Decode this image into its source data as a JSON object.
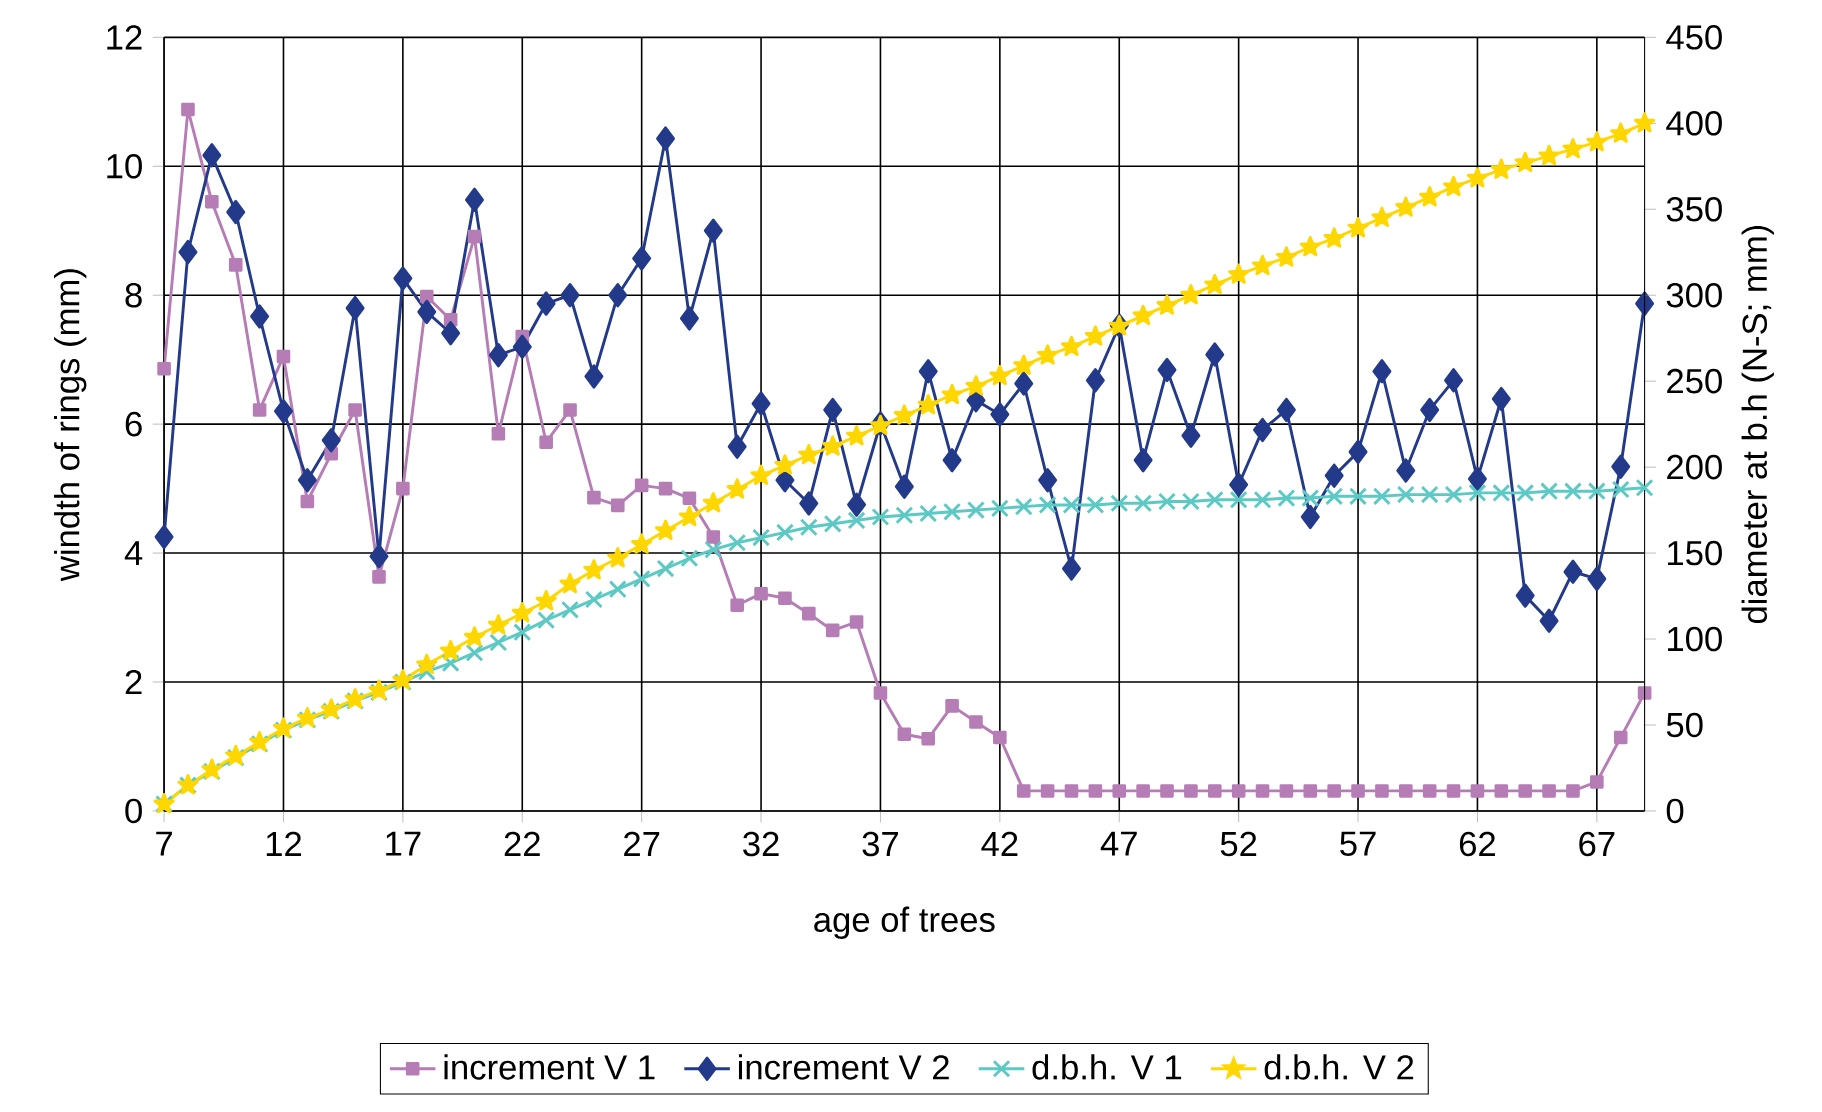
{
  "chart_data": {
    "type": "line",
    "xlabel": "age of trees",
    "ylabel": "windth of rings (mm)",
    "y2label": "diameter at b.h (N-S; mm)",
    "x": [
      7,
      8,
      9,
      10,
      11,
      12,
      13,
      14,
      15,
      16,
      17,
      18,
      19,
      20,
      21,
      22,
      23,
      24,
      25,
      26,
      27,
      28,
      29,
      30,
      31,
      32,
      33,
      34,
      35,
      36,
      37,
      38,
      39,
      40,
      41,
      42,
      43,
      44,
      45,
      46,
      47,
      48,
      49,
      50,
      51,
      52,
      53,
      54,
      55,
      56,
      57,
      58,
      59,
      60,
      61,
      62,
      63,
      64,
      65,
      66,
      67,
      68,
      69
    ],
    "xlim": [
      7,
      69
    ],
    "xticks": [
      7,
      12,
      17,
      22,
      27,
      32,
      37,
      42,
      47,
      52,
      57,
      62,
      67
    ],
    "ylim": [
      0,
      12
    ],
    "yticks": [
      0,
      2,
      4,
      6,
      8,
      10,
      12
    ],
    "y2lim": [
      0,
      450
    ],
    "y2ticks": [
      0,
      50,
      100,
      150,
      200,
      250,
      300,
      350,
      400,
      450
    ],
    "grid": true,
    "legend": "bottom",
    "line_style": "solid",
    "series": [
      {
        "name": "increment V 1",
        "color": "#b57cb5",
        "marker": "square",
        "values": [
          6.86,
          10.88,
          9.45,
          8.47,
          6.22,
          7.05,
          4.8,
          5.54,
          6.22,
          3.63,
          5.0,
          7.98,
          7.62,
          8.91,
          5.85,
          7.36,
          5.72,
          6.22,
          4.86,
          4.74,
          5.05,
          5.0,
          4.85,
          4.25,
          3.19,
          3.37,
          3.3,
          3.06,
          2.8,
          2.93,
          1.83,
          1.19,
          1.12,
          1.63,
          1.38,
          1.14,
          0.31,
          0.31,
          0.31,
          0.31,
          0.31,
          0.31,
          0.31,
          0.31,
          0.31,
          0.31,
          0.31,
          0.31,
          0.31,
          0.31,
          0.31,
          0.31,
          0.31,
          0.31,
          0.31,
          0.31,
          0.31,
          0.31,
          0.31,
          0.31,
          0.45,
          1.14,
          1.83
        ]
      },
      {
        "name": "increment V 2",
        "color": "#233a8a",
        "marker": "diamond",
        "values": [
          4.25,
          8.67,
          10.17,
          9.29,
          7.67,
          6.2,
          5.13,
          5.75,
          7.8,
          3.95,
          8.26,
          7.74,
          7.41,
          9.48,
          7.07,
          7.2,
          7.87,
          8.0,
          6.74,
          8.0,
          8.57,
          10.43,
          7.64,
          9.0,
          5.65,
          6.32,
          5.13,
          4.77,
          6.22,
          4.75,
          6.01,
          5.03,
          6.82,
          5.44,
          6.37,
          6.15,
          6.63,
          5.13,
          3.76,
          6.68,
          7.53,
          5.44,
          6.84,
          5.82,
          7.08,
          5.06,
          5.91,
          6.22,
          4.56,
          5.2,
          5.57,
          6.82,
          5.28,
          6.22,
          6.68,
          5.15,
          6.39,
          3.34,
          2.95,
          3.71,
          3.6,
          5.34,
          7.87
        ]
      },
      {
        "name": "d.b.h. V 1",
        "color": "#5cc9c4",
        "marker": "cross",
        "axis": "y2",
        "values": [
          4,
          15,
          23,
          31,
          39,
          47,
          53,
          58,
          64,
          69,
          75,
          81,
          86,
          92,
          98,
          104,
          111,
          117,
          123,
          129,
          135,
          141,
          147,
          152,
          156,
          159,
          162,
          165,
          167,
          169,
          171,
          172,
          173,
          174,
          175,
          176,
          177,
          178,
          178,
          178,
          179,
          179,
          180,
          180,
          181,
          181,
          181,
          182,
          182,
          183,
          183,
          183,
          184,
          184,
          184,
          185,
          185,
          185,
          186,
          186,
          186,
          187,
          188
        ]
      },
      {
        "name": "d.b.h. V 2",
        "color": "#ffd700",
        "marker": "star",
        "axis": "y2",
        "values": [
          4,
          15,
          24,
          32,
          40,
          48,
          54,
          59,
          65,
          70,
          76,
          85,
          93,
          101,
          108,
          115,
          122,
          132,
          140,
          147,
          155,
          163,
          171,
          179,
          187,
          195,
          201,
          207,
          212,
          218,
          224,
          230,
          236,
          242,
          247,
          253,
          259,
          265,
          270,
          276,
          282,
          288,
          294,
          300,
          306,
          312,
          317,
          322,
          328,
          333,
          339,
          345,
          351,
          357,
          363,
          368,
          373,
          377,
          381,
          385,
          389,
          394,
          400
        ]
      }
    ]
  }
}
